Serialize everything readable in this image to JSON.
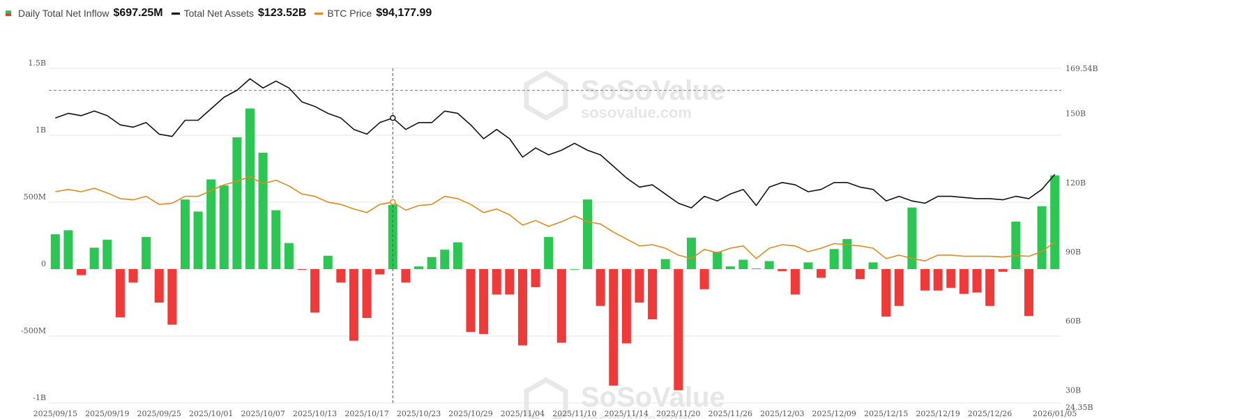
{
  "legend": {
    "inflow_label": "Daily Total Net Inflow",
    "inflow_value": "$697.25M",
    "assets_label": "Total Net Assets",
    "assets_value": "$123.52B",
    "btc_label": "BTC Price",
    "btc_value": "$94,177.99"
  },
  "watermark": {
    "brand": "SoSoValue",
    "url": "sosovalue.com"
  },
  "colors": {
    "positive": "#2cc653",
    "negative": "#f03a3a",
    "assets_line": "#111111",
    "btc_line": "#e08a1e",
    "grid": "#e6e6e6"
  },
  "chart_data": {
    "type": "bar",
    "title": "",
    "left_axis": {
      "ylim": [
        -1000,
        1500
      ],
      "ticks": [
        "1.5B",
        "1B",
        "500M",
        "0",
        "-500M",
        "-1B"
      ],
      "tick_values": [
        1500,
        1000,
        500,
        0,
        -500,
        -1000
      ]
    },
    "right_axis": {
      "ylim": [
        24.35,
        169.54
      ],
      "ticks": [
        "169.54B",
        "150B",
        "120B",
        "90B",
        "60B",
        "30B",
        "24.35B"
      ],
      "tick_values": [
        169.54,
        150,
        120,
        90,
        60,
        30,
        24.35
      ]
    },
    "x_tick_labels": [
      "2025/09/15",
      "2025/09/19",
      "2025/09/25",
      "2025/10/01",
      "2025/10/07",
      "2025/10/13",
      "2025/10/17",
      "2025/10/23",
      "2025/10/29",
      "2025/11/04",
      "2025/11/10",
      "2025/11/14",
      "2025/11/20",
      "2025/11/26",
      "2025/12/03",
      "2025/12/09",
      "2025/12/15",
      "2025/12/19",
      "2025/12/26",
      "2026/01/05"
    ],
    "x_tick_positions": [
      0,
      4,
      8,
      12,
      16,
      20,
      24,
      28,
      32,
      36,
      40,
      44,
      48,
      52,
      56,
      60,
      64,
      68,
      72,
      77
    ],
    "crosshair_index": 26,
    "reference_line_value": 160,
    "series": [
      {
        "name": "Daily Total Net Inflow",
        "unit": "M USD",
        "values": [
          260,
          290,
          -45,
          160,
          220,
          -360,
          -100,
          240,
          -250,
          -415,
          520,
          430,
          670,
          625,
          985,
          1200,
          870,
          440,
          195,
          -5,
          -325,
          100,
          -100,
          -535,
          -365,
          -40,
          480,
          -100,
          20,
          90,
          145,
          200,
          -470,
          -485,
          -190,
          -190,
          -570,
          -135,
          240,
          -550,
          0,
          520,
          -275,
          -870,
          -555,
          -250,
          -375,
          75,
          -905,
          235,
          -150,
          130,
          20,
          70,
          5,
          60,
          -15,
          -190,
          50,
          -65,
          150,
          225,
          -75,
          50,
          -355,
          -275,
          460,
          -160,
          -160,
          -140,
          -185,
          -175,
          -275,
          -20,
          355,
          -350,
          470,
          700
        ]
      },
      {
        "name": "Total Net Assets",
        "unit": "B USD",
        "values": [
          148,
          150,
          149,
          151,
          149,
          145,
          144,
          146,
          141,
          140,
          147,
          147,
          152,
          157,
          160,
          165,
          161,
          164,
          161,
          155,
          153,
          150,
          148,
          143,
          141,
          146,
          148,
          143,
          146,
          146,
          151,
          150,
          145,
          139,
          143,
          139,
          131,
          135,
          132,
          134,
          137,
          134,
          132,
          127,
          122,
          118,
          119,
          115,
          111,
          109,
          114,
          112,
          115,
          117,
          110,
          118,
          120,
          119,
          116,
          117,
          120,
          120,
          118,
          117,
          112,
          114,
          112,
          111,
          114,
          114,
          113.5,
          113,
          113,
          112.5,
          114,
          113,
          117,
          123.52
        ]
      },
      {
        "name": "BTC Price",
        "unit": "K USD",
        "values": [
          116,
          117,
          116,
          117.5,
          115.5,
          113,
          112.5,
          114,
          110.5,
          111,
          114,
          114,
          116.5,
          119,
          120.5,
          122.5,
          119.5,
          121,
          118.5,
          115,
          114,
          111.5,
          110.5,
          108.5,
          107,
          110.5,
          111.5,
          108,
          110,
          110.5,
          114,
          113,
          110.5,
          107,
          108.5,
          106,
          101.5,
          103.5,
          101,
          103,
          105.5,
          103,
          102,
          98.5,
          95.5,
          92.5,
          93,
          91.5,
          88.5,
          87,
          91,
          89.5,
          91.5,
          92.5,
          87,
          91.5,
          93,
          92.5,
          90,
          91.5,
          93.5,
          93,
          92.5,
          91.5,
          87,
          88.5,
          87,
          86,
          88.5,
          88.5,
          88,
          88,
          88,
          87.7,
          88.3,
          88,
          90,
          94.18
        ]
      }
    ]
  }
}
